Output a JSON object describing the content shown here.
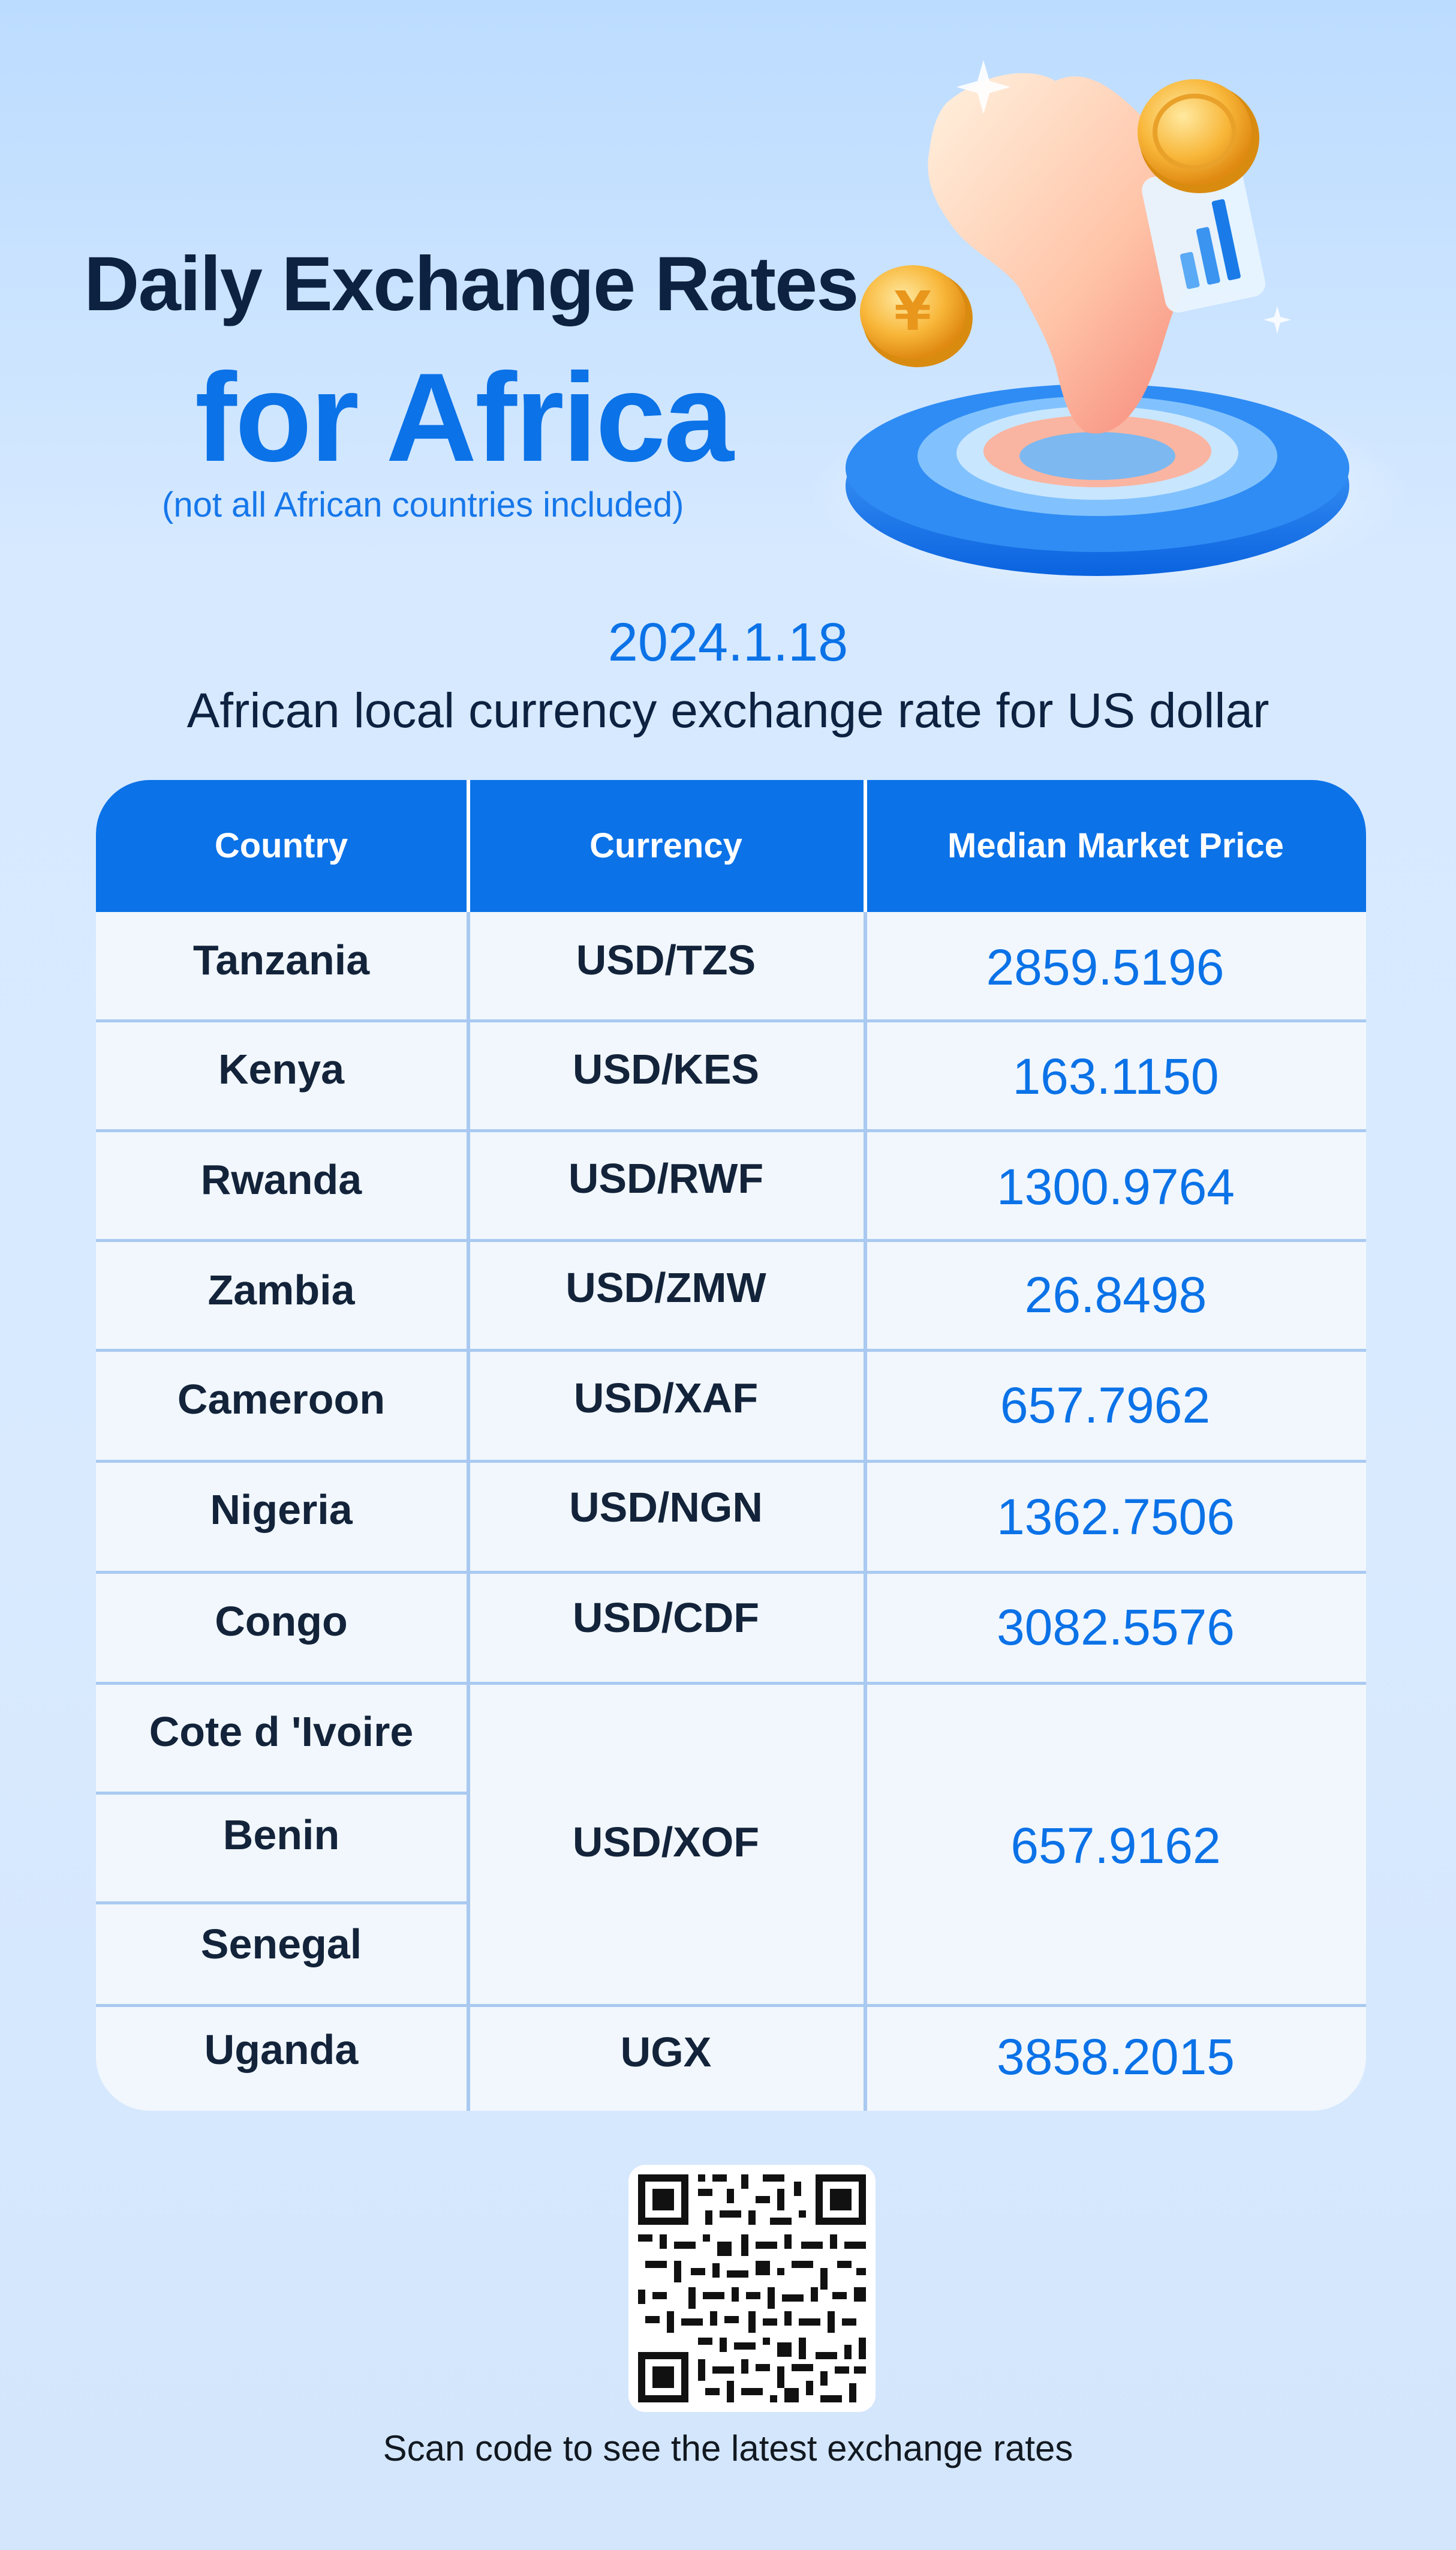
{
  "header": {
    "title_line1": "Daily Exchange Rates",
    "title_line2": "for Africa",
    "subtitle": "(not all African countries included)"
  },
  "date": "2024.1.18",
  "caption": "African local currency exchange rate for US dollar",
  "table": {
    "headers": [
      "Country",
      "Currency",
      "Median Market Price"
    ],
    "rows": [
      {
        "country": "Tanzania",
        "currency": "USD/TZS",
        "price": "2859.5196"
      },
      {
        "country": "Kenya",
        "currency": "USD/KES",
        "price": "163.1150"
      },
      {
        "country": "Rwanda",
        "currency": "USD/RWF",
        "price": "1300.9764"
      },
      {
        "country": "Zambia",
        "currency": "USD/ZMW",
        "price": "26.8498"
      },
      {
        "country": "Cameroon",
        "currency": "USD/XAF",
        "price": "657.7962"
      },
      {
        "country": "Nigeria",
        "currency": "USD/NGN",
        "price": "1362.7506"
      },
      {
        "country": "Congo",
        "currency": "USD/CDF",
        "price": "3082.5576"
      }
    ],
    "group": {
      "countries": [
        "Cote d 'Ivoire",
        "Benin",
        "Senegal"
      ],
      "currency": "USD/XOF",
      "price": "657.9162"
    },
    "last_row": {
      "country": "Uganda",
      "currency": "UGX",
      "price": "3858.2015"
    }
  },
  "footer": "Scan code to see the latest exchange rates",
  "colors": {
    "accent": "#0b72e7",
    "dark_text": "#0d2240",
    "header_bg": "#0b72e7"
  },
  "icons": [
    "africa-map-icon",
    "yen-coin-icon",
    "gold-coin-icon",
    "bar-chart-card-icon",
    "qr-code-icon"
  ]
}
